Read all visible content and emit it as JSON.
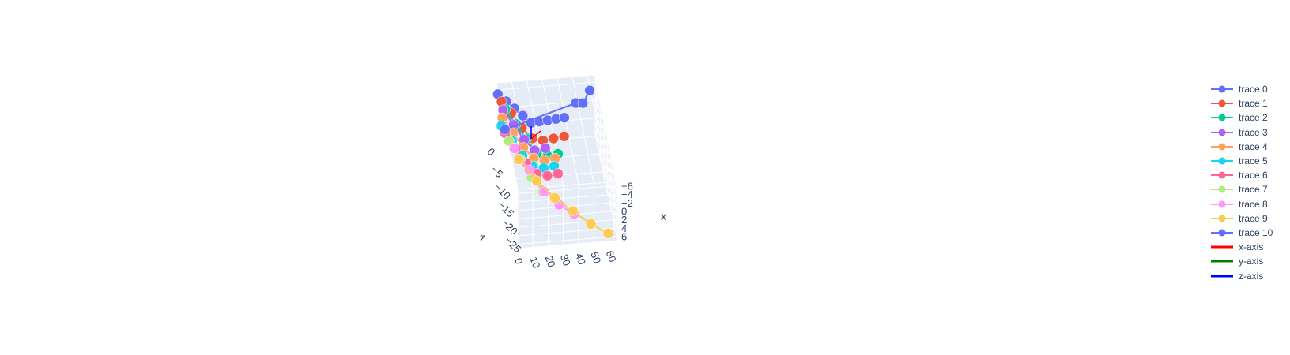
{
  "chart_data": {
    "type": "scatter3d",
    "title": "",
    "axes": {
      "x": {
        "title": "x",
        "ticks": [
          "−6",
          "−4",
          "−2",
          "0",
          "2",
          "4",
          "6"
        ],
        "range": [
          -7,
          7
        ]
      },
      "y": {
        "title": "",
        "ticks": [
          "0",
          "10",
          "20",
          "30",
          "40",
          "50",
          "60"
        ],
        "range": [
          0,
          65
        ]
      },
      "z": {
        "title": "z",
        "ticks": [
          "0",
          "−5",
          "−10",
          "−15",
          "−20",
          "−25"
        ],
        "range": [
          -28,
          2
        ]
      }
    },
    "grid": true,
    "legend_placement": "right",
    "series": [
      {
        "name": "trace 0",
        "color": "#636efa",
        "points": [
          [
            -6,
            0,
            0
          ],
          [
            -5,
            5,
            -1
          ],
          [
            -4,
            10,
            -2
          ],
          [
            -3,
            15,
            -3
          ],
          [
            -2,
            20,
            -4
          ],
          [
            -3,
            25,
            -5
          ],
          [
            -4,
            30,
            -6
          ],
          [
            -5,
            35,
            -7
          ],
          [
            -6,
            40,
            -8
          ]
        ]
      },
      {
        "name": "trace 1",
        "color": "#ef553b",
        "points": [
          [
            -5,
            2,
            -1
          ],
          [
            -3,
            8,
            -2
          ],
          [
            -1,
            14,
            -4
          ],
          [
            0,
            20,
            -6
          ],
          [
            -1,
            26,
            -8
          ],
          [
            -3,
            32,
            -10
          ],
          [
            -5,
            38,
            -12
          ]
        ]
      },
      {
        "name": "trace 2",
        "color": "#00cc96",
        "points": [
          [
            -4,
            4,
            -2
          ],
          [
            -2,
            10,
            -4
          ],
          [
            0,
            16,
            -6
          ],
          [
            2,
            22,
            -8
          ],
          [
            1,
            28,
            -10
          ],
          [
            -1,
            34,
            -12
          ]
        ]
      },
      {
        "name": "trace 3",
        "color": "#ab63fa",
        "points": [
          [
            -3,
            3,
            -1
          ],
          [
            -1,
            9,
            -3
          ],
          [
            1,
            15,
            -5
          ],
          [
            2,
            21,
            -7
          ],
          [
            0,
            27,
            -9
          ]
        ]
      },
      {
        "name": "trace 4",
        "color": "#ffa15a",
        "points": [
          [
            -2,
            2,
            -2
          ],
          [
            0,
            8,
            -4
          ],
          [
            2,
            14,
            -6
          ],
          [
            3,
            20,
            -8
          ],
          [
            2,
            26,
            -10
          ],
          [
            0,
            32,
            -12
          ]
        ]
      },
      {
        "name": "trace 5",
        "color": "#19d3f3",
        "points": [
          [
            -1,
            1,
            -3
          ],
          [
            1,
            7,
            -5
          ],
          [
            3,
            13,
            -7
          ],
          [
            4,
            19,
            -9
          ],
          [
            3,
            25,
            -11
          ],
          [
            1,
            31,
            -13
          ]
        ]
      },
      {
        "name": "trace 6",
        "color": "#ff6692",
        "points": [
          [
            0,
            3,
            -4
          ],
          [
            2,
            9,
            -6
          ],
          [
            4,
            15,
            -8
          ],
          [
            5,
            21,
            -10
          ],
          [
            4,
            27,
            -12
          ],
          [
            2,
            33,
            -14
          ]
        ]
      },
      {
        "name": "trace 7",
        "color": "#b6e880",
        "points": [
          [
            1,
            5,
            -5
          ],
          [
            3,
            11,
            -8
          ],
          [
            5,
            17,
            -11
          ],
          [
            6,
            23,
            -14
          ],
          [
            5,
            29,
            -17
          ]
        ]
      },
      {
        "name": "trace 8",
        "color": "#ff97ff",
        "points": [
          [
            2,
            8,
            -6
          ],
          [
            4,
            16,
            -10
          ],
          [
            6,
            24,
            -14
          ],
          [
            6,
            32,
            -18
          ],
          [
            5,
            40,
            -22
          ]
        ]
      },
      {
        "name": "trace 9",
        "color": "#fecb52",
        "points": [
          [
            3,
            10,
            -8
          ],
          [
            5,
            20,
            -12
          ],
          [
            6,
            30,
            -16
          ],
          [
            6,
            40,
            -20
          ],
          [
            6,
            50,
            -24
          ],
          [
            6,
            60,
            -27
          ]
        ]
      },
      {
        "name": "trace 10",
        "color": "#636efa",
        "points": [
          [
            -6,
            0,
            -10
          ],
          [
            -5,
            50,
            -3
          ],
          [
            -4,
            55,
            -2
          ],
          [
            -6,
            60,
            -1
          ]
        ]
      }
    ],
    "axis_indicators": [
      {
        "name": "x-axis",
        "color": "#ff0000"
      },
      {
        "name": "y-axis",
        "color": "#008000"
      },
      {
        "name": "z-axis",
        "color": "#0000ff"
      }
    ]
  }
}
